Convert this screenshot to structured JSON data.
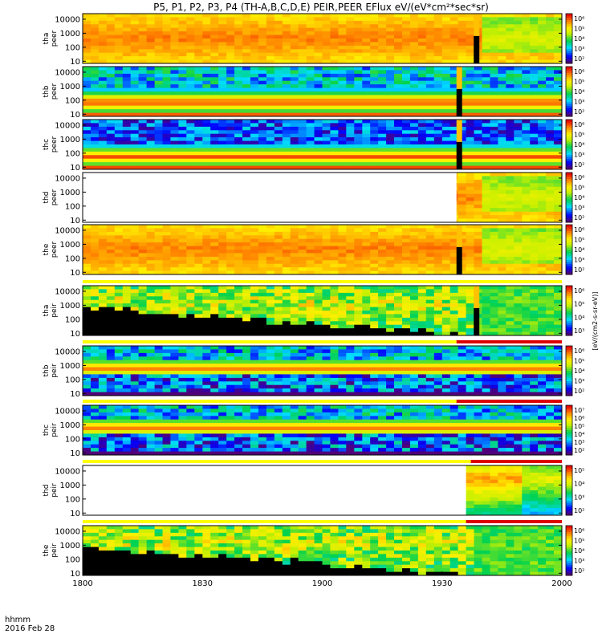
{
  "title": "P5, P1, P2, P3, P4 (TH-A,B,C,D,E) PEIR,PEER EFlux eV/(eV*cm²*sec*sr)",
  "footer": {
    "time_label": "hhmm",
    "date_label": "2016 Feb 28"
  },
  "colorbar_label": "[eV/(cm2-s-sr-eV)]",
  "chart_data": {
    "type": "heatmap",
    "x_axis": {
      "range": [
        "18:00",
        "20:00"
      ],
      "ticks": [
        "1800",
        "1830",
        "1900",
        "1930",
        "2000"
      ]
    },
    "y_axis": {
      "scale": "log",
      "range": [
        7,
        25000
      ],
      "ticks": [
        "10",
        "100",
        "1000",
        "10000"
      ]
    },
    "colormap": "rainbow",
    "panels": [
      {
        "probe": "tha",
        "species": "peer",
        "ylabel_line1": "tha",
        "ylabel_line2": "peer",
        "cb_ticks": [
          "10⁶",
          "10⁵",
          "10⁴",
          "10³",
          "10²"
        ],
        "data_start_frac": 0,
        "gap_frac": 0.816,
        "mode": "electron_hot"
      },
      {
        "probe": "thb",
        "species": "peer",
        "ylabel_line1": "thb",
        "ylabel_line2": "peer",
        "cb_ticks": [
          "10⁶",
          "10⁵",
          "10⁴",
          "10³",
          "10²"
        ],
        "data_start_frac": 0,
        "gap_frac": 0.78,
        "mode": "electron_band"
      },
      {
        "probe": "thc",
        "species": "peer",
        "ylabel_line1": "thc",
        "ylabel_line2": "peer",
        "cb_ticks": [
          "10⁶",
          "10⁵",
          "10⁴",
          "10³",
          "10²"
        ],
        "data_start_frac": 0,
        "gap_frac": 0.78,
        "mode": "electron_band_blue"
      },
      {
        "probe": "thd",
        "species": "peer",
        "ylabel_line1": "thd",
        "ylabel_line2": "peer",
        "cb_ticks": [
          "10⁶",
          "10⁵",
          "10⁴",
          "10³",
          "10²"
        ],
        "data_start_frac": 0.78,
        "gap_frac": -1,
        "mode": "electron_hot"
      },
      {
        "probe": "the",
        "species": "peer",
        "ylabel_line1": "the",
        "ylabel_line2": "peer",
        "cb_ticks": [
          "10⁶",
          "10⁵",
          "10⁴",
          "10³",
          "10²"
        ],
        "data_start_frac": 0,
        "gap_frac": 0.78,
        "mode": "electron_hot"
      },
      {
        "probe": "tha",
        "species": "peir",
        "ylabel_line1": "tha",
        "ylabel_line2": "peir",
        "cb_ticks": [
          "10⁶",
          "10⁵",
          "10⁴",
          "10³"
        ],
        "data_start_frac": 0,
        "gap_frac": 0.816,
        "mode": "ion_black"
      },
      {
        "probe": "thb",
        "species": "peir",
        "ylabel_line1": "thb",
        "ylabel_line2": "peir",
        "cb_ticks": [
          "10⁶",
          "10⁵",
          "10⁴",
          "10³",
          "10²"
        ],
        "data_start_frac": 0,
        "gap_frac": -1,
        "mode": "ion_band"
      },
      {
        "probe": "thc",
        "species": "peir",
        "ylabel_line1": "thc",
        "ylabel_line2": "peir",
        "cb_ticks": [
          "10⁷",
          "10⁶",
          "10⁵",
          "10⁴",
          "10³",
          "10²"
        ],
        "data_start_frac": 0,
        "gap_frac": -1,
        "mode": "ion_band"
      },
      {
        "probe": "thd",
        "species": "peir",
        "ylabel_line1": "thd",
        "ylabel_line2": "peir",
        "cb_ticks": [
          "10⁵",
          "10⁴",
          "10³",
          "10²"
        ],
        "data_start_frac": 0.8,
        "gap_frac": -1,
        "mode": "ion_hot"
      },
      {
        "probe": "the",
        "species": "peir",
        "ylabel_line1": "the",
        "ylabel_line2": "peir",
        "cb_ticks": [
          "10⁶",
          "10⁵",
          "10⁴",
          "10³",
          "10²"
        ],
        "data_start_frac": 0,
        "gap_frac": -1,
        "mode": "ion_black"
      }
    ],
    "mode_flags": [
      {
        "panel": 5,
        "segments": [
          {
            "from": 0,
            "to": 1,
            "color": "#ffff00"
          }
        ]
      },
      {
        "panel": 6,
        "segments": [
          {
            "from": 0,
            "to": 0.78,
            "color": "#ffff00"
          },
          {
            "from": 0.78,
            "to": 1,
            "color": "#dd0000"
          }
        ]
      },
      {
        "panel": 7,
        "segments": [
          {
            "from": 0,
            "to": 0.78,
            "color": "#ffff00"
          },
          {
            "from": 0.78,
            "to": 1,
            "color": "#dd0000"
          }
        ]
      },
      {
        "panel": 8,
        "segments": [
          {
            "from": 0,
            "to": 0.81,
            "color": "#ffff00"
          },
          {
            "from": 0.81,
            "to": 1,
            "color": "#dd0000"
          }
        ]
      },
      {
        "panel": 9,
        "segments": [
          {
            "from": 0,
            "to": 0.8,
            "color": "#ffff00"
          },
          {
            "from": 0.8,
            "to": 1,
            "color": "#dd0000"
          }
        ]
      }
    ]
  }
}
